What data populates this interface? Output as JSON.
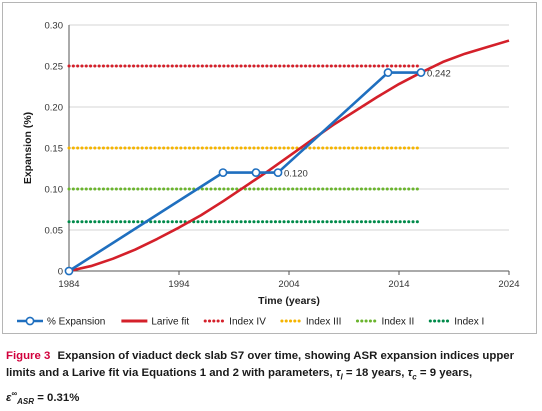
{
  "chart_data": {
    "type": "line",
    "xlabel": "Time (years)",
    "ylabel": "Expansion (%)",
    "xlim": [
      1984,
      2024
    ],
    "ylim": [
      0,
      0.3
    ],
    "x_ticks": [
      1984,
      1994,
      2004,
      2014,
      2024
    ],
    "y_ticks": [
      0,
      0.05,
      0.1,
      0.15,
      0.2,
      0.25,
      0.3
    ],
    "y_tick_labels": [
      "0",
      "0.05",
      "0.10",
      "0.15",
      "0.20",
      "0.25",
      "0.30"
    ],
    "grid": "horizontal",
    "legend_position": "bottom",
    "series": [
      {
        "name": "% Expansion",
        "style": "line-with-open-circles",
        "color": "#1f6fbf",
        "x": [
          1984,
          1998,
          2001,
          2003,
          2013,
          2016
        ],
        "y": [
          0,
          0.12,
          0.12,
          0.12,
          0.242,
          0.242
        ]
      },
      {
        "name": "Larive fit",
        "style": "line",
        "color": "#d4202a",
        "x": [
          1984,
          1986,
          1988,
          1990,
          1992,
          1994,
          1996,
          1998,
          2000,
          2002,
          2004,
          2006,
          2008,
          2010,
          2012,
          2014,
          2016,
          2018,
          2020,
          2022,
          2024
        ],
        "y": [
          0,
          0.006,
          0.015,
          0.026,
          0.039,
          0.053,
          0.068,
          0.085,
          0.103,
          0.121,
          0.14,
          0.159,
          0.178,
          0.195,
          0.212,
          0.228,
          0.242,
          0.255,
          0.265,
          0.273,
          0.281
        ]
      },
      {
        "name": "Index IV",
        "style": "dotted",
        "color": "#d4202a",
        "y_constant": 0.25,
        "x_range": [
          1984,
          2016
        ]
      },
      {
        "name": "Index III",
        "style": "dotted",
        "color": "#f5b400",
        "y_constant": 0.15,
        "x_range": [
          1984,
          2016
        ]
      },
      {
        "name": "Index II",
        "style": "dotted",
        "color": "#6ab42d",
        "y_constant": 0.1,
        "x_range": [
          1984,
          2016
        ]
      },
      {
        "name": "Index I",
        "style": "dotted",
        "color": "#008a4a",
        "y_constant": 0.06,
        "x_range": [
          1984,
          2016
        ]
      }
    ],
    "annotations": [
      {
        "text": "0.120",
        "x": 2003,
        "y": 0.12
      },
      {
        "text": "0.242",
        "x": 2016,
        "y": 0.242
      }
    ]
  },
  "caption": {
    "label": "Figure 3",
    "text": "Expansion of viaduct deck slab S7 over time, showing ASR expansion indices upper limits and a Larive fit via Equations 1 and 2 with parameters,",
    "tau_l": "τ",
    "tau_l_sub": "l",
    "tau_l_value": " = 18 years,",
    "tau_c": "τ",
    "tau_c_sub": "c",
    "tau_c_value": " = 9 years,",
    "eps": "ε",
    "eps_sup": "∞",
    "eps_sub": "ASR",
    "eps_value": " = 0.31%"
  }
}
